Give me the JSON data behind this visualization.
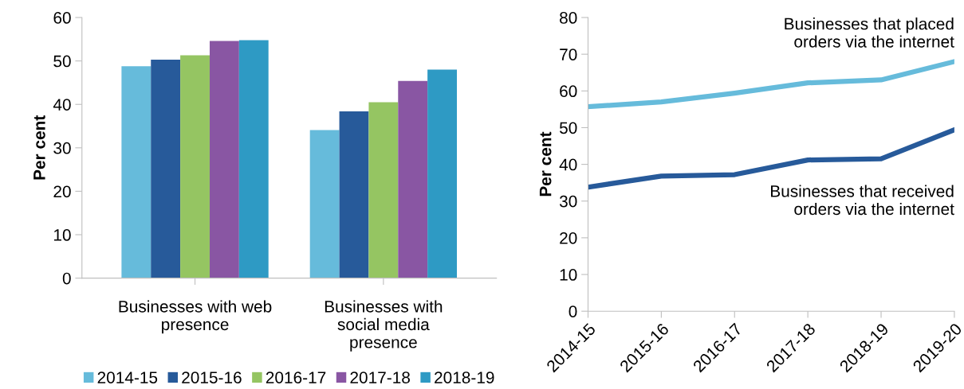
{
  "chart_data": [
    {
      "type": "bar",
      "categories": [
        "Businesses with web presence",
        "Businesses with social media presence"
      ],
      "ylabel": "Per cent",
      "ylim": [
        0,
        60
      ],
      "yticks": [
        0,
        10,
        20,
        30,
        40,
        50,
        60
      ],
      "grid": false,
      "legend": "bottom",
      "series": [
        {
          "name": "2014-15",
          "color": "#66bbdb",
          "values": [
            48.8,
            34.1
          ]
        },
        {
          "name": "2015-16",
          "color": "#275a9a",
          "values": [
            50.3,
            38.4
          ]
        },
        {
          "name": "2016-17",
          "color": "#95c562",
          "values": [
            51.3,
            40.5
          ]
        },
        {
          "name": "2017-18",
          "color": "#8956a3",
          "values": [
            54.6,
            45.4
          ]
        },
        {
          "name": "2018-19",
          "color": "#2e9ac4",
          "values": [
            54.8,
            48.0
          ]
        }
      ]
    },
    {
      "type": "line",
      "categories": [
        "2014-15",
        "2015-16",
        "2016-17",
        "2017-18",
        "2018-19",
        "2019-20"
      ],
      "ylabel": "Per cent",
      "ylim": [
        0,
        80
      ],
      "yticks": [
        0,
        10,
        20,
        30,
        40,
        50,
        60,
        70,
        80
      ],
      "grid": false,
      "legend": false,
      "marker": "none",
      "line_style": "solid",
      "series": [
        {
          "name": "Businesses that placed orders via the internet",
          "color": "#66bbdb",
          "values": [
            55.7,
            57.0,
            59.4,
            62.2,
            63.0,
            68.0
          ]
        },
        {
          "name": "Businesses that received orders via the internet",
          "color": "#275a9a",
          "values": [
            33.8,
            36.8,
            37.2,
            41.2,
            41.5,
            49.4
          ]
        }
      ]
    }
  ]
}
